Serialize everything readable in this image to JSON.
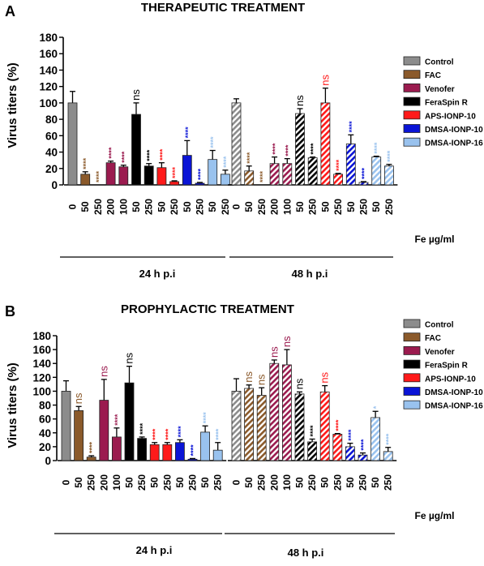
{
  "colors": {
    "Control": "#8c8c8c",
    "FAC": "#8b5a2b",
    "Venofer": "#9b1b4f",
    "FeraSpin R": "#000000",
    "APS-IONP-10": "#ff1a1a",
    "DMSA-IONP-10": "#0a14d6",
    "DMSA-IONP-16": "#99c2ee"
  },
  "sig_colors": {
    "Control": "#000000",
    "FAC": "#8b5a2b",
    "Venofer": "#9b1b4f",
    "FeraSpin R": "#000000",
    "APS-IONP-10": "#ff1a1a",
    "DMSA-IONP-10": "#0a14d6",
    "DMSA-IONP-16": "#99c2ee"
  },
  "legend": [
    "Control",
    "FAC",
    "Venofer",
    "FeraSpin R",
    "APS-IONP-10",
    "DMSA-IONP-10",
    "DMSA-IONP-16"
  ],
  "chart_data": [
    {
      "panel": "A",
      "title": "THERAPEUTIC TREATMENT",
      "type": "bar",
      "ylabel": "Virus titers (%)",
      "ylim": [
        0,
        180
      ],
      "yticks": [
        0,
        20,
        40,
        60,
        80,
        100,
        120,
        140,
        160,
        180
      ],
      "unit_label": "Fe µg/ml",
      "groups": [
        {
          "label": "24 h p.i",
          "hatched": false,
          "bars": [
            {
              "treatment": "Control",
              "dose": "0",
              "value": 100,
              "error": 14,
              "sig": ""
            },
            {
              "treatment": "FAC",
              "dose": "50",
              "value": 13,
              "error": 3,
              "sig": "****"
            },
            {
              "treatment": "FAC",
              "dose": "250",
              "value": 0,
              "error": 0,
              "sig": "****"
            },
            {
              "treatment": "Venofer",
              "dose": "200",
              "value": 27,
              "error": 2,
              "sig": "****"
            },
            {
              "treatment": "Venofer",
              "dose": "100",
              "value": 22,
              "error": 2,
              "sig": "****"
            },
            {
              "treatment": "FeraSpin R",
              "dose": "50",
              "value": 86,
              "error": 14,
              "sig": "ns"
            },
            {
              "treatment": "FeraSpin R",
              "dose": "250",
              "value": 23,
              "error": 3,
              "sig": "****"
            },
            {
              "treatment": "APS-IONP-10",
              "dose": "50",
              "value": 21,
              "error": 6,
              "sig": "****"
            },
            {
              "treatment": "APS-IONP-10",
              "dose": "250",
              "value": 4,
              "error": 1,
              "sig": "****"
            },
            {
              "treatment": "DMSA-IONP-10",
              "dose": "50",
              "value": 36,
              "error": 18,
              "sig": "****"
            },
            {
              "treatment": "DMSA-IONP-10",
              "dose": "250",
              "value": 2,
              "error": 1,
              "sig": "****"
            },
            {
              "treatment": "DMSA-IONP-16",
              "dose": "50",
              "value": 31,
              "error": 11,
              "sig": "****"
            },
            {
              "treatment": "DMSA-IONP-16",
              "dose": "250",
              "value": 13,
              "error": 5,
              "sig": "****"
            }
          ]
        },
        {
          "label": "48 h p.i",
          "hatched": true,
          "bars": [
            {
              "treatment": "Control",
              "dose": "0",
              "value": 100,
              "error": 5,
              "sig": ""
            },
            {
              "treatment": "FAC",
              "dose": "50",
              "value": 17,
              "error": 6,
              "sig": "****"
            },
            {
              "treatment": "FAC",
              "dose": "250",
              "value": 0,
              "error": 0,
              "sig": "****"
            },
            {
              "treatment": "Venofer",
              "dose": "200",
              "value": 26,
              "error": 8,
              "sig": "****"
            },
            {
              "treatment": "Venofer",
              "dose": "100",
              "value": 26,
              "error": 6,
              "sig": "****"
            },
            {
              "treatment": "FeraSpin R",
              "dose": "50",
              "value": 87,
              "error": 6,
              "sig": "ns"
            },
            {
              "treatment": "FeraSpin R",
              "dose": "250",
              "value": 33,
              "error": 1,
              "sig": "****"
            },
            {
              "treatment": "APS-IONP-10",
              "dose": "50",
              "value": 100,
              "error": 18,
              "sig": "ns"
            },
            {
              "treatment": "APS-IONP-10",
              "dose": "250",
              "value": 13,
              "error": 1,
              "sig": "****"
            },
            {
              "treatment": "DMSA-IONP-10",
              "dose": "50",
              "value": 50,
              "error": 11,
              "sig": "****"
            },
            {
              "treatment": "DMSA-IONP-10",
              "dose": "250",
              "value": 3,
              "error": 1,
              "sig": "****"
            },
            {
              "treatment": "DMSA-IONP-16",
              "dose": "50",
              "value": 34,
              "error": 1,
              "sig": "****"
            },
            {
              "treatment": "DMSA-IONP-16",
              "dose": "250",
              "value": 23,
              "error": 2,
              "sig": "****"
            }
          ]
        }
      ]
    },
    {
      "panel": "B",
      "title": "PROPHYLACTIC TREATMENT",
      "type": "bar",
      "ylabel": "Virus titers (%)",
      "ylim": [
        0,
        180
      ],
      "yticks": [
        0,
        20,
        40,
        60,
        80,
        100,
        120,
        140,
        160,
        180
      ],
      "unit_label": "Fe µg/ml",
      "groups": [
        {
          "label": "24 h p.i",
          "hatched": false,
          "bars": [
            {
              "treatment": "Control",
              "dose": "0",
              "value": 100,
              "error": 15,
              "sig": ""
            },
            {
              "treatment": "FAC",
              "dose": "50",
              "value": 72,
              "error": 6,
              "sig": "ns"
            },
            {
              "treatment": "FAC",
              "dose": "250",
              "value": 5,
              "error": 2,
              "sig": "****"
            },
            {
              "treatment": "Venofer",
              "dose": "200",
              "value": 87,
              "error": 30,
              "sig": "ns"
            },
            {
              "treatment": "Venofer",
              "dose": "100",
              "value": 34,
              "error": 13,
              "sig": "****"
            },
            {
              "treatment": "FeraSpin R",
              "dose": "50",
              "value": 112,
              "error": 24,
              "sig": "ns"
            },
            {
              "treatment": "FeraSpin R",
              "dose": "250",
              "value": 32,
              "error": 2,
              "sig": "****"
            },
            {
              "treatment": "APS-IONP-10",
              "dose": "50",
              "value": 23,
              "error": 3,
              "sig": "****"
            },
            {
              "treatment": "APS-IONP-10",
              "dose": "250",
              "value": 23,
              "error": 3,
              "sig": "****"
            },
            {
              "treatment": "DMSA-IONP-10",
              "dose": "50",
              "value": 26,
              "error": 4,
              "sig": "****"
            },
            {
              "treatment": "DMSA-IONP-10",
              "dose": "250",
              "value": 2,
              "error": 1,
              "sig": "****"
            },
            {
              "treatment": "DMSA-IONP-16",
              "dose": "50",
              "value": 41,
              "error": 9,
              "sig": "****"
            },
            {
              "treatment": "DMSA-IONP-16",
              "dose": "250",
              "value": 15,
              "error": 11,
              "sig": "****"
            }
          ]
        },
        {
          "label": "48 h p.i",
          "hatched": true,
          "bars": [
            {
              "treatment": "Control",
              "dose": "0",
              "value": 100,
              "error": 18,
              "sig": ""
            },
            {
              "treatment": "FAC",
              "dose": "50",
              "value": 104,
              "error": 5,
              "sig": "ns"
            },
            {
              "treatment": "FAC",
              "dose": "250",
              "value": 94,
              "error": 11,
              "sig": "ns"
            },
            {
              "treatment": "Venofer",
              "dose": "200",
              "value": 140,
              "error": 5,
              "sig": "ns"
            },
            {
              "treatment": "Venofer",
              "dose": "100",
              "value": 138,
              "error": 22,
              "sig": "ns"
            },
            {
              "treatment": "FeraSpin R",
              "dose": "50",
              "value": 96,
              "error": 3,
              "sig": "ns"
            },
            {
              "treatment": "FeraSpin R",
              "dose": "250",
              "value": 27,
              "error": 4,
              "sig": "****"
            },
            {
              "treatment": "APS-IONP-10",
              "dose": "50",
              "value": 99,
              "error": 9,
              "sig": "ns"
            },
            {
              "treatment": "APS-IONP-10",
              "dose": "250",
              "value": 38,
              "error": 1,
              "sig": "****"
            },
            {
              "treatment": "DMSA-IONP-10",
              "dose": "50",
              "value": 20,
              "error": 5,
              "sig": "****"
            },
            {
              "treatment": "DMSA-IONP-10",
              "dose": "250",
              "value": 8,
              "error": 3,
              "sig": "****"
            },
            {
              "treatment": "DMSA-IONP-16",
              "dose": "50",
              "value": 62,
              "error": 9,
              "sig": "*"
            },
            {
              "treatment": "DMSA-IONP-16",
              "dose": "250",
              "value": 13,
              "error": 6,
              "sig": "****"
            }
          ]
        }
      ]
    }
  ]
}
